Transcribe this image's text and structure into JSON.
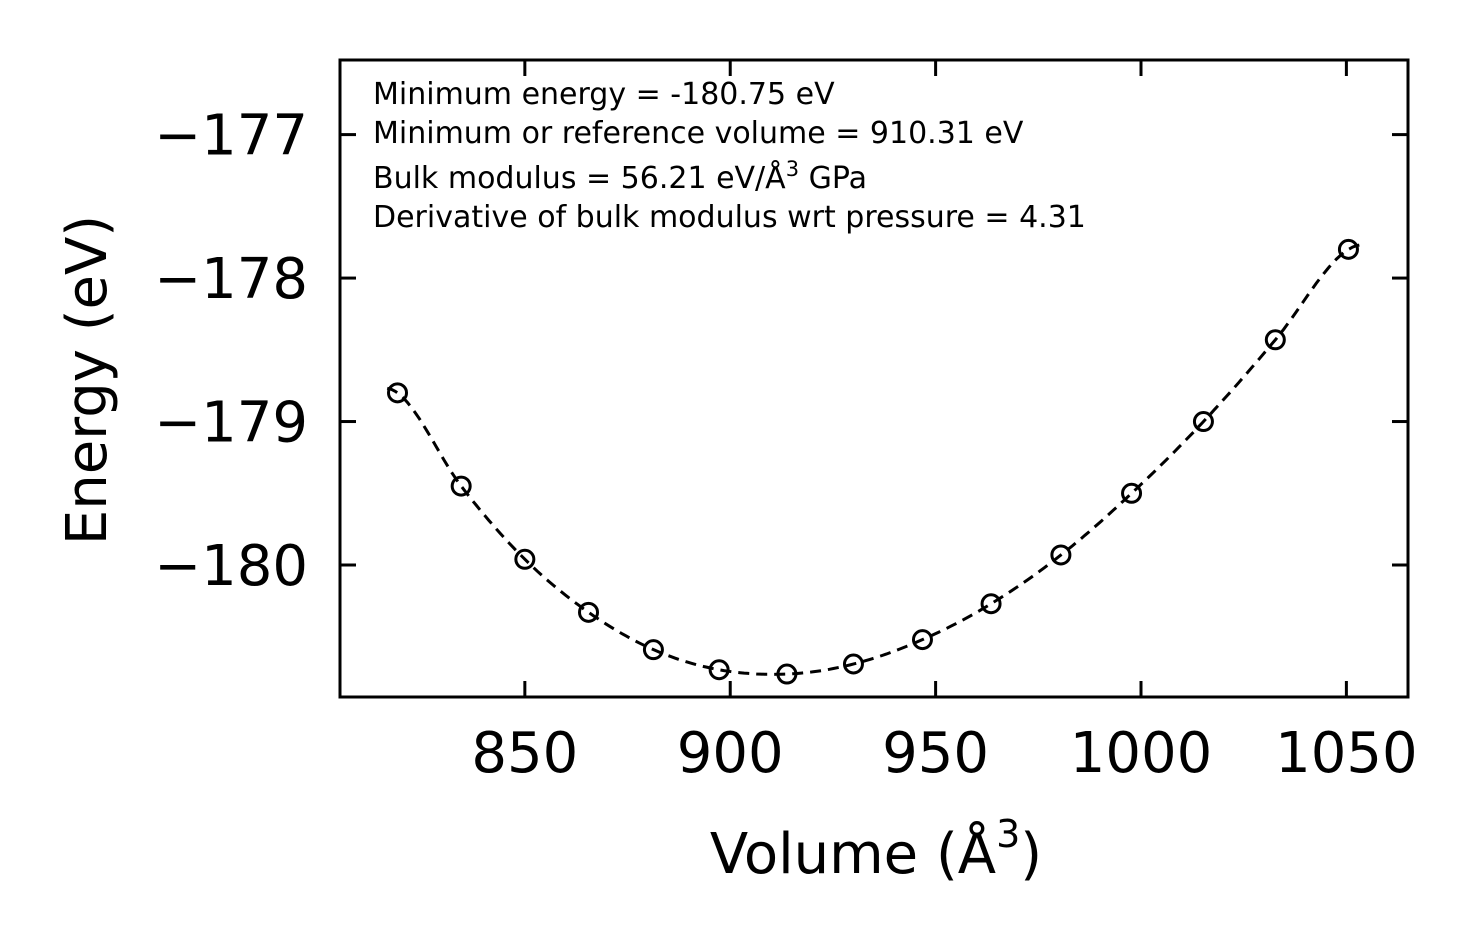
{
  "chart_data": {
    "type": "scatter",
    "xlabel": "Volume (Å",
    "xlabel_sup": "3",
    "xlabel_close": ")",
    "ylabel": "Energy (eV)",
    "xlim": [
      805,
      1065
    ],
    "ylim": [
      -180.92,
      -176.48
    ],
    "xticks": [
      850,
      900,
      950,
      1000,
      1050
    ],
    "yticks": [
      -177,
      -178,
      -179,
      -180
    ],
    "xtick_labels": [
      "850",
      "900",
      "950",
      "1000",
      "1050"
    ],
    "ytick_labels": [
      "−177",
      "−178",
      "−179",
      "−180"
    ],
    "series": [
      {
        "name": "data",
        "marker": "open-circle",
        "x": [
          819,
          834.5,
          850,
          865.5,
          881.3,
          897.3,
          913.8,
          930,
          946.8,
          963.5,
          980.5,
          997.7,
          1015.2,
          1032.7,
          1050.5
        ],
        "y": [
          -178.8,
          -179.45,
          -179.96,
          -180.33,
          -180.59,
          -180.73,
          -180.76,
          -180.69,
          -180.52,
          -180.27,
          -179.93,
          -179.5,
          -179.0,
          -178.43,
          -177.8
        ]
      },
      {
        "name": "fit",
        "style": "dashed",
        "E0": -180.75,
        "V0": 910.31,
        "x_range": [
          816.5,
          1053.5
        ]
      }
    ],
    "annotations": {
      "line1": "Minimum energy = -180.75 eV",
      "line2": "Minimum or reference volume = 910.31 eV",
      "line3_a": "Bulk modulus = 56.21 eV/Å",
      "line3_sup": "3",
      "line3_b": " GPa",
      "line4": "Derivative of bulk modulus wrt pressure = 4.31"
    }
  }
}
